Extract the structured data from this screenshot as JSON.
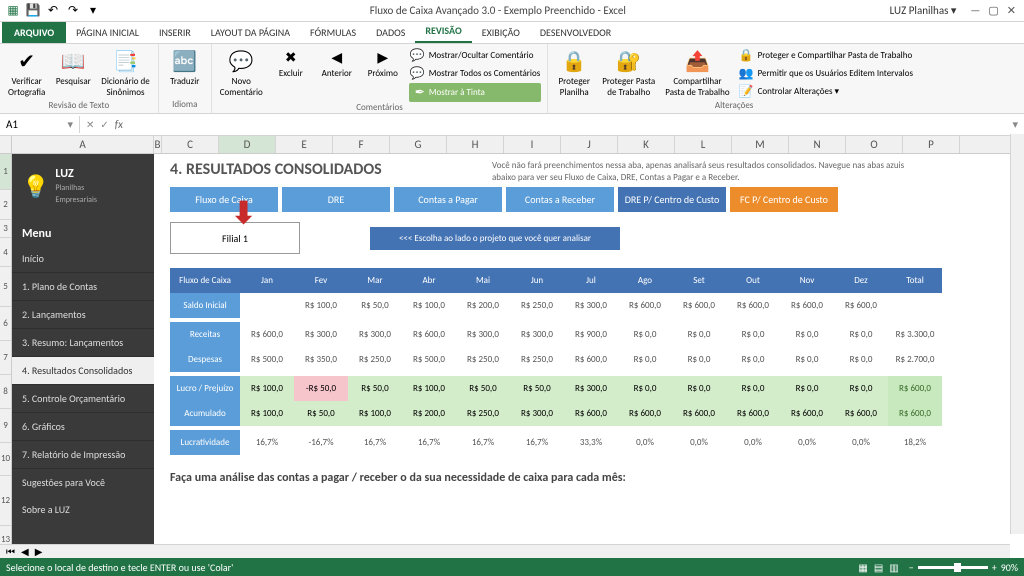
{
  "app": {
    "title": "Fluxo de Caixa Avançado 3.0 - Exemplo Preenchido - Excel",
    "user": "LUZ Planilhas ▾"
  },
  "ribbon": {
    "tabs": [
      "ARQUIVO",
      "PÁGINA INICIAL",
      "INSERIR",
      "LAYOUT DA PÁGINA",
      "FÓRMULAS",
      "DADOS",
      "REVISÃO",
      "EXIBIÇÃO",
      "DESENVOLVEDOR"
    ],
    "active_tab": "REVISÃO",
    "groups": {
      "proofing": {
        "label": "Revisão de Texto",
        "btn1": "Verificar\nOrtografia",
        "btn2": "Pesquisar",
        "btn3": "Dicionário de\nSinônimos"
      },
      "language": {
        "label": "Idioma",
        "btn": "Traduzir"
      },
      "comments": {
        "label": "Comentários",
        "new": "Novo\nComentário",
        "del": "Excluir",
        "prev": "Anterior",
        "next": "Próximo",
        "show1": "Mostrar/Ocultar Comentário",
        "show2": "Mostrar Todos os Comentários",
        "ink": "Mostrar à Tinta"
      },
      "protect": {
        "label": "Alterações",
        "p1": "Proteger\nPlanilha",
        "p2": "Proteger Pasta\nde Trabalho",
        "p3": "Compartilhar\nPasta de Trabalho",
        "l1": "Proteger e Compartilhar Pasta de Trabalho",
        "l2": "Permitir que os Usuários Editem Intervalos",
        "l3": "Controlar Alterações ▾"
      }
    }
  },
  "namebox": "A1",
  "columns": [
    "A",
    "B",
    "C",
    "D",
    "E",
    "F",
    "G",
    "H",
    "I",
    "J",
    "K",
    "L",
    "M",
    "N",
    "O",
    "P"
  ],
  "sidebar": {
    "brand": "LUZ",
    "brand_sub": "Planilhas\nEmpresariais",
    "menu_title": "Menu",
    "start": "Início",
    "items": [
      "1. Plano de Contas",
      "2. Lançamentos",
      "3. Resumo: Lançamentos",
      "4. Resultados Consolidados",
      "5. Controle Orçamentário",
      "6. Gráficos",
      "7. Relatório de Impressão"
    ],
    "active": 3,
    "sug": "Sugestões para Você",
    "about": "Sobre a LUZ"
  },
  "page": {
    "title": "4. RESULTADOS CONSOLIDADOS",
    "desc": "Você não fará preenchimentos nessa aba, apenas analisará seus resultados consolidados. Navegue nas abas azuis abaixo para ver seu Fluxo de Caixa, DRE, Contas a Pagar e a Receber.",
    "nav": [
      "Fluxo de Caixa",
      "DRE",
      "Contas a Pagar",
      "Contas a Receber",
      "DRE P/ Centro de Custo",
      "FC P/ Centro de Custo"
    ],
    "filial": "Filial 1",
    "filial_hint": "<<< Escolha ao lado o projeto que você quer analisar",
    "bottom": "Faça uma análise das contas a pagar / receber o da sua necessidade de caixa para cada mês:"
  },
  "table": {
    "months": [
      "Jan",
      "Fev",
      "Mar",
      "Abr",
      "Mai",
      "Jun",
      "Jul",
      "Ago",
      "Set",
      "Out",
      "Nov",
      "Dez",
      "Total"
    ],
    "corner": "Fluxo de Caixa",
    "rows": [
      {
        "label": "Saldo Inicial",
        "cls": "val",
        "vals": [
          "",
          "R$ 100,0",
          "R$ 50,0",
          "R$ 100,0",
          "R$ 200,0",
          "R$ 250,0",
          "R$ 300,0",
          "R$ 600,0",
          "R$ 600,0",
          "R$ 600,0",
          "R$ 600,0",
          "R$ 600,0",
          ""
        ]
      },
      {
        "label": "Receitas",
        "cls": "val",
        "vals": [
          "R$ 600,0",
          "R$ 300,0",
          "R$ 300,0",
          "R$ 600,0",
          "R$ 300,0",
          "R$ 300,0",
          "R$ 900,0",
          "R$ 0,0",
          "R$ 0,0",
          "R$ 0,0",
          "R$ 0,0",
          "R$ 0,0",
          "R$ 3.300,0"
        ]
      },
      {
        "label": "Despesas",
        "cls": "val",
        "vals": [
          "R$ 500,0",
          "R$ 350,0",
          "R$ 250,0",
          "R$ 500,0",
          "R$ 250,0",
          "R$ 250,0",
          "R$ 600,0",
          "R$ 0,0",
          "R$ 0,0",
          "R$ 0,0",
          "R$ 0,0",
          "R$ 0,0",
          "R$ 2.700,0"
        ]
      },
      {
        "label": "Lucro / Prejuízo",
        "cls": "green",
        "vals": [
          "R$ 100,0",
          "-R$ 50,0",
          "R$ 50,0",
          "R$ 100,0",
          "R$ 50,0",
          "R$ 50,0",
          "R$ 300,0",
          "R$ 0,0",
          "R$ 0,0",
          "R$ 0,0",
          "R$ 0,0",
          "R$ 0,0",
          "R$ 600,0"
        ],
        "cell_cls": [
          "green",
          "pink",
          "green",
          "green",
          "green",
          "green",
          "green",
          "green",
          "green",
          "green",
          "green",
          "green",
          "greeny"
        ]
      },
      {
        "label": "Acumulado",
        "cls": "green",
        "vals": [
          "R$ 100,0",
          "R$ 50,0",
          "R$ 100,0",
          "R$ 200,0",
          "R$ 250,0",
          "R$ 300,0",
          "R$ 600,0",
          "R$ 600,0",
          "R$ 600,0",
          "R$ 600,0",
          "R$ 600,0",
          "R$ 600,0",
          "R$ 600,0"
        ],
        "cell_cls": [
          "green",
          "green",
          "green",
          "green",
          "green",
          "green",
          "green",
          "green",
          "green",
          "green",
          "green",
          "green",
          "greeny"
        ]
      },
      {
        "label": "Lucratividade",
        "cls": "val",
        "vals": [
          "16,7%",
          "-16,7%",
          "16,7%",
          "16,7%",
          "16,7%",
          "16,7%",
          "33,3%",
          "0,0%",
          "0,0%",
          "0,0%",
          "0,0%",
          "0,0%",
          "18,2%"
        ]
      }
    ]
  },
  "statusbar": {
    "text": "Selecione o local de destino e tecle ENTER ou use 'Colar'",
    "zoom": "90%"
  },
  "colors": {
    "ribbon_green": "#217346",
    "blue": "#5b9dd8",
    "dblue": "#4473b4",
    "orange": "#ed8c2b"
  }
}
